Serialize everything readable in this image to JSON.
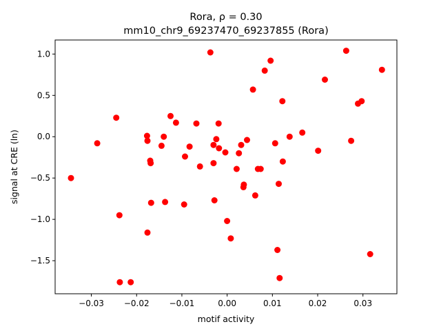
{
  "chart_data": {
    "type": "scatter",
    "title_line1": "Rora, ρ = 0.30",
    "title_line2": "mm10_chr9_69237470_69237855 (Rora)",
    "xlabel": "motif activity",
    "ylabel": "signal at CRE (ln)",
    "xlim": [
      -0.038,
      0.0375
    ],
    "ylim": [
      -1.9,
      1.17
    ],
    "x_ticks": [
      -0.03,
      -0.02,
      -0.01,
      0.0,
      0.01,
      0.02,
      0.03
    ],
    "x_tick_labels": [
      "−0.03",
      "−0.02",
      "−0.01",
      "0.00",
      "0.01",
      "0.02",
      "0.03"
    ],
    "y_ticks": [
      -1.5,
      -1.0,
      -0.5,
      0.0,
      0.5,
      1.0
    ],
    "y_tick_labels": [
      "−1.5",
      "−1.0",
      "−0.5",
      "0.0",
      "0.5",
      "1.0"
    ],
    "grid": false,
    "marker_color": "#ff0000",
    "points": [
      [
        -0.0345,
        -0.5
      ],
      [
        -0.0287,
        -0.08
      ],
      [
        -0.0245,
        0.23
      ],
      [
        -0.0238,
        -0.95
      ],
      [
        -0.0237,
        -1.76
      ],
      [
        -0.0213,
        -1.76
      ],
      [
        -0.0177,
        0.01
      ],
      [
        -0.0176,
        -0.05
      ],
      [
        -0.0176,
        -1.16
      ],
      [
        -0.017,
        -0.29
      ],
      [
        -0.0169,
        -0.32
      ],
      [
        -0.0168,
        -0.8
      ],
      [
        -0.0145,
        -0.11
      ],
      [
        -0.014,
        0.0
      ],
      [
        -0.0137,
        -0.79
      ],
      [
        -0.0125,
        0.25
      ],
      [
        -0.0113,
        0.17
      ],
      [
        -0.0095,
        -0.82
      ],
      [
        -0.0093,
        -0.24
      ],
      [
        -0.0083,
        -0.12
      ],
      [
        -0.0068,
        0.16
      ],
      [
        -0.006,
        -0.36
      ],
      [
        -0.0037,
        1.02
      ],
      [
        -0.003,
        -0.1
      ],
      [
        -0.003,
        -0.32
      ],
      [
        -0.0028,
        -0.77
      ],
      [
        -0.0024,
        -0.03
      ],
      [
        -0.0019,
        0.16
      ],
      [
        -0.0018,
        -0.14
      ],
      [
        -0.0004,
        -0.19
      ],
      [
        0.0,
        -1.02
      ],
      [
        0.0008,
        -1.23
      ],
      [
        0.0021,
        -0.39
      ],
      [
        0.0026,
        -0.2
      ],
      [
        0.0031,
        -0.1
      ],
      [
        0.0036,
        -0.61
      ],
      [
        0.0037,
        -0.58
      ],
      [
        0.0044,
        -0.04
      ],
      [
        0.0057,
        0.57
      ],
      [
        0.0062,
        -0.71
      ],
      [
        0.0068,
        -0.39
      ],
      [
        0.0074,
        -0.39
      ],
      [
        0.0083,
        0.8
      ],
      [
        0.0096,
        0.92
      ],
      [
        0.0106,
        -0.08
      ],
      [
        0.0111,
        -1.37
      ],
      [
        0.0114,
        -0.57
      ],
      [
        0.0116,
        -1.71
      ],
      [
        0.0122,
        0.43
      ],
      [
        0.0123,
        -0.3
      ],
      [
        0.0138,
        0.0
      ],
      [
        0.0166,
        0.05
      ],
      [
        0.0201,
        -0.17
      ],
      [
        0.0216,
        0.69
      ],
      [
        0.0263,
        1.04
      ],
      [
        0.0274,
        -0.05
      ],
      [
        0.0289,
        0.4
      ],
      [
        0.0297,
        0.43
      ],
      [
        0.0316,
        -1.42
      ],
      [
        0.0342,
        0.81
      ]
    ]
  }
}
